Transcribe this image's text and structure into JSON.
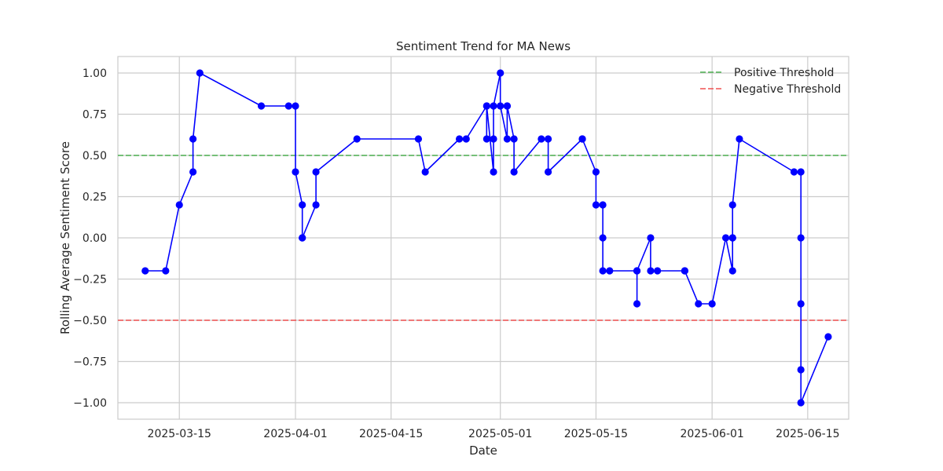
{
  "chart_data": {
    "type": "line",
    "title": "Sentiment Trend for MA News",
    "xlabel": "Date",
    "ylabel": "Rolling Average Sentiment Score",
    "xlim": [
      "2025-03-06",
      "2025-06-21"
    ],
    "ylim": [
      -1.1,
      1.1
    ],
    "x_ticks": [
      "2025-03-15",
      "2025-04-01",
      "2025-04-15",
      "2025-05-01",
      "2025-05-15",
      "2025-06-01",
      "2025-06-15"
    ],
    "y_ticks": [
      "1.00",
      "0.75",
      "0.50",
      "0.25",
      "0.00",
      "−0.25",
      "−0.50",
      "−0.75",
      "−1.00"
    ],
    "grid": true,
    "legend_position": "top-right",
    "series": [
      {
        "color": "#0000ff",
        "marker": "circle",
        "points": [
          [
            "2025-03-10",
            -0.2
          ],
          [
            "2025-03-13",
            -0.2
          ],
          [
            "2025-03-15",
            0.2
          ],
          [
            "2025-03-17",
            0.4
          ],
          [
            "2025-03-17",
            0.6
          ],
          [
            "2025-03-18",
            1.0
          ],
          [
            "2025-03-27",
            0.8
          ],
          [
            "2025-03-31",
            0.8
          ],
          [
            "2025-04-01",
            0.8
          ],
          [
            "2025-04-01",
            0.4
          ],
          [
            "2025-04-02",
            0.2
          ],
          [
            "2025-04-02",
            0.0
          ],
          [
            "2025-04-02",
            0.0
          ],
          [
            "2025-04-04",
            0.2
          ],
          [
            "2025-04-04",
            0.4
          ],
          [
            "2025-04-10",
            0.6
          ],
          [
            "2025-04-19",
            0.6
          ],
          [
            "2025-04-20",
            0.4
          ],
          [
            "2025-04-25",
            0.6
          ],
          [
            "2025-04-26",
            0.6
          ],
          [
            "2025-04-29",
            0.8
          ],
          [
            "2025-04-29",
            0.6
          ],
          [
            "2025-04-29",
            0.8
          ],
          [
            "2025-04-30",
            0.4
          ],
          [
            "2025-04-30",
            0.6
          ],
          [
            "2025-04-30",
            0.8
          ],
          [
            "2025-05-01",
            1.0
          ],
          [
            "2025-05-01",
            0.8
          ],
          [
            "2025-05-02",
            0.6
          ],
          [
            "2025-05-02",
            0.8
          ],
          [
            "2025-05-02",
            0.8
          ],
          [
            "2025-05-03",
            0.6
          ],
          [
            "2025-05-03",
            0.4
          ],
          [
            "2025-05-07",
            0.6
          ],
          [
            "2025-05-08",
            0.6
          ],
          [
            "2025-05-08",
            0.4
          ],
          [
            "2025-05-13",
            0.6
          ],
          [
            "2025-05-13",
            0.6
          ],
          [
            "2025-05-15",
            0.4
          ],
          [
            "2025-05-15",
            0.2
          ],
          [
            "2025-05-16",
            0.2
          ],
          [
            "2025-05-16",
            0.0
          ],
          [
            "2025-05-16",
            -0.2
          ],
          [
            "2025-05-17",
            -0.2
          ],
          [
            "2025-05-21",
            -0.2
          ],
          [
            "2025-05-21",
            -0.4
          ],
          [
            "2025-05-21",
            -0.2
          ],
          [
            "2025-05-23",
            0.0
          ],
          [
            "2025-05-23",
            -0.2
          ],
          [
            "2025-05-24",
            -0.2
          ],
          [
            "2025-05-28",
            -0.2
          ],
          [
            "2025-05-28",
            -0.2
          ],
          [
            "2025-05-30",
            -0.4
          ],
          [
            "2025-06-01",
            -0.4
          ],
          [
            "2025-06-03",
            0.0
          ],
          [
            "2025-06-04",
            -0.2
          ],
          [
            "2025-06-04",
            0.0
          ],
          [
            "2025-06-04",
            0.0
          ],
          [
            "2025-06-04",
            0.2
          ],
          [
            "2025-06-05",
            0.6
          ],
          [
            "2025-06-13",
            0.4
          ],
          [
            "2025-06-14",
            0.4
          ],
          [
            "2025-06-14",
            0.0
          ],
          [
            "2025-06-14",
            -0.4
          ],
          [
            "2025-06-14",
            -0.8
          ],
          [
            "2025-06-14",
            -1.0
          ],
          [
            "2025-06-18",
            -0.6
          ]
        ]
      }
    ],
    "thresholds": [
      {
        "name": "Positive Threshold",
        "value": 0.5,
        "color": "#4caf50",
        "style": "dashed"
      },
      {
        "name": "Negative Threshold",
        "value": -0.5,
        "color": "#f05050",
        "style": "dashed"
      }
    ]
  }
}
